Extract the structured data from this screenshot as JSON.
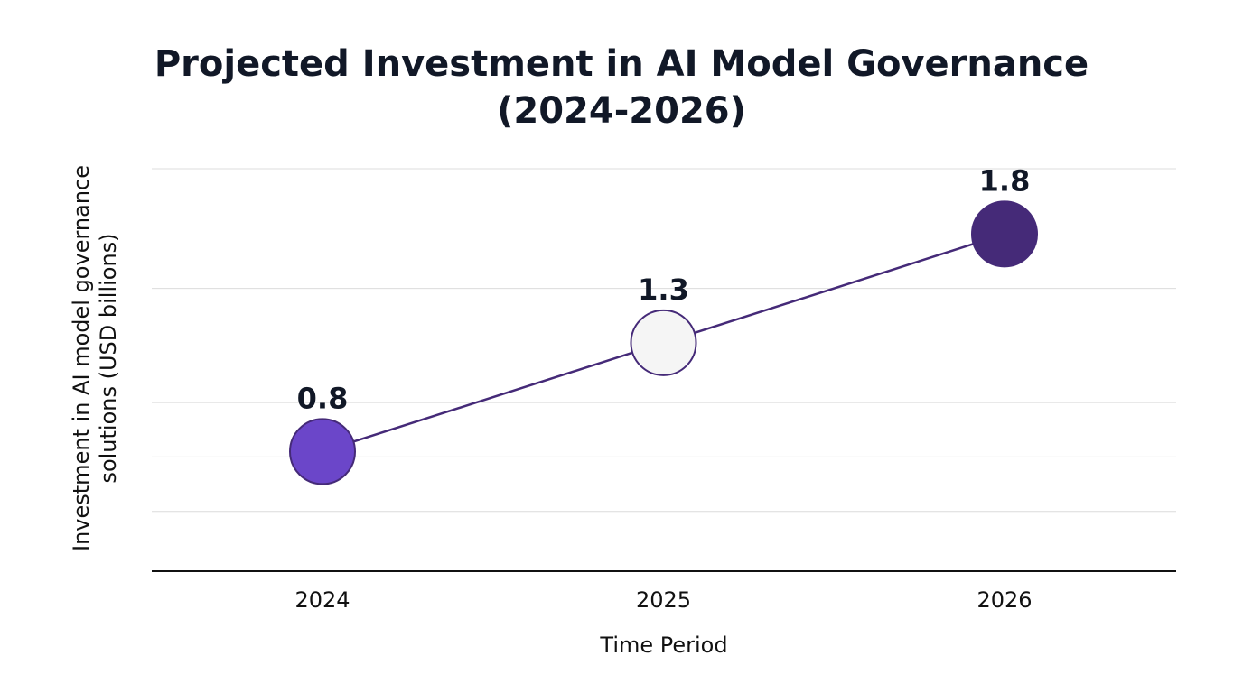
{
  "chart_data": {
    "type": "line",
    "title_lines": [
      "Projected Investment in AI Model Governance",
      "(2024-2026)"
    ],
    "xlabel": "Time Period",
    "ylabel_lines": [
      "Investment in AI model governance",
      "solutions (USD billions)"
    ],
    "categories": [
      "2024",
      "2025",
      "2026"
    ],
    "series": [
      {
        "values": [
          0.8,
          1.3,
          1.8
        ],
        "data_labels": [
          "0.8",
          "1.3",
          "1.8"
        ],
        "point_colors": [
          "#6b46c9",
          "#f5f5f5",
          "#452a78"
        ]
      }
    ],
    "line_color": "#452a78",
    "ylim": [
      0.25,
      2.1
    ],
    "gridlines": [
      0.525,
      0.775,
      1.025,
      1.55,
      2.1
    ],
    "grid": true,
    "legend": "none"
  }
}
